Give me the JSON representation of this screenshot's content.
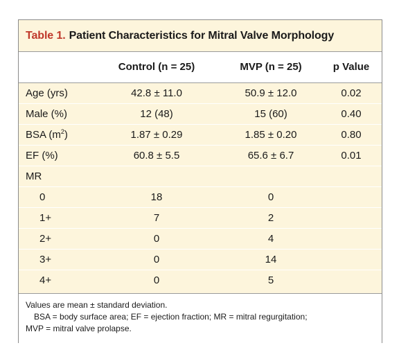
{
  "table": {
    "label": "Table 1.",
    "title": "Patient Characteristics for Mitral Valve Morphology",
    "columns": [
      "",
      "Control (n = 25)",
      "MVP (n = 25)",
      "p Value"
    ],
    "rows": [
      {
        "label": "Age (yrs)",
        "control": "42.8 ± 11.0",
        "mvp": "50.9 ± 12.0",
        "p": "0.02"
      },
      {
        "label": "Male (%)",
        "control": "12 (48)",
        "mvp": "15 (60)",
        "p": "0.40"
      },
      {
        "label_main": "BSA (m",
        "label_sup": "2",
        "label_end": ")",
        "control": "1.87 ± 0.29",
        "mvp": "1.85 ± 0.20",
        "p": "0.80"
      },
      {
        "label": "EF (%)",
        "control": "60.8 ± 5.5",
        "mvp": "65.6 ± 6.7",
        "p": "0.01"
      },
      {
        "label": "MR",
        "control": "",
        "mvp": "",
        "p": ""
      },
      {
        "label": "0",
        "control": "18",
        "mvp": "0",
        "p": ""
      },
      {
        "label": "1+",
        "control": "7",
        "mvp": "2",
        "p": ""
      },
      {
        "label": "2+",
        "control": "0",
        "mvp": "4",
        "p": ""
      },
      {
        "label": "3+",
        "control": "0",
        "mvp": "14",
        "p": ""
      },
      {
        "label": "4+",
        "control": "0",
        "mvp": "5",
        "p": ""
      }
    ],
    "footnote": {
      "line1": "Values are mean ± standard deviation.",
      "line2": "BSA = body surface area; EF = ejection fraction; MR = mitral regurgitation;",
      "line3": "MVP = mitral valve prolapse."
    }
  },
  "colors": {
    "title_accent": "#c0392b",
    "band_background": "#fdf5dc",
    "rule": "#9a9a9a"
  }
}
